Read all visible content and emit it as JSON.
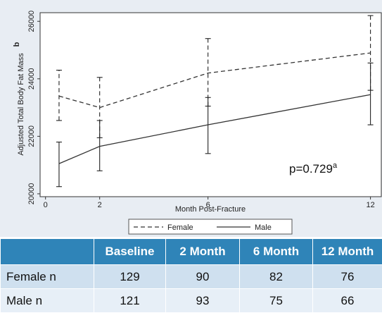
{
  "chart_data": {
    "type": "line",
    "xlabel": "Month Post-Fracture",
    "ylabel": "Adjusted Total Body Fat Mass",
    "panel_label": "b",
    "x_ticks": [
      0,
      2,
      6,
      12
    ],
    "y_ticks": [
      20000,
      22000,
      24000,
      26000
    ],
    "xlim": [
      -0.2,
      12.4
    ],
    "ylim": [
      19900,
      26300
    ],
    "grid": false,
    "legend_position": "bottom",
    "annotation": {
      "text": "p=0.729",
      "superscript": "a"
    },
    "series": [
      {
        "name": "Female",
        "style": "dashed",
        "points": [
          {
            "x": 0.5,
            "y": 23400,
            "low": 22550,
            "high": 24300
          },
          {
            "x": 2,
            "y": 23000,
            "low": 21950,
            "high": 24050
          },
          {
            "x": 6,
            "y": 24200,
            "low": 23050,
            "high": 25400
          },
          {
            "x": 12,
            "y": 24900,
            "low": 23600,
            "high": 26200
          }
        ]
      },
      {
        "name": "Male",
        "style": "solid",
        "points": [
          {
            "x": 0.5,
            "y": 21050,
            "low": 20250,
            "high": 21800
          },
          {
            "x": 2,
            "y": 21650,
            "low": 20800,
            "high": 22550
          },
          {
            "x": 6,
            "y": 22400,
            "low": 21400,
            "high": 23350
          },
          {
            "x": 12,
            "y": 23450,
            "low": 22400,
            "high": 24550
          }
        ]
      }
    ]
  },
  "table": {
    "headers": [
      "",
      "Baseline",
      "2 Month",
      "6 Month",
      "12 Month"
    ],
    "rows": [
      {
        "label": "Female n",
        "values": [
          "129",
          "90",
          "82",
          "76"
        ]
      },
      {
        "label": "Male n",
        "values": [
          "121",
          "93",
          "75",
          "66"
        ]
      }
    ]
  }
}
